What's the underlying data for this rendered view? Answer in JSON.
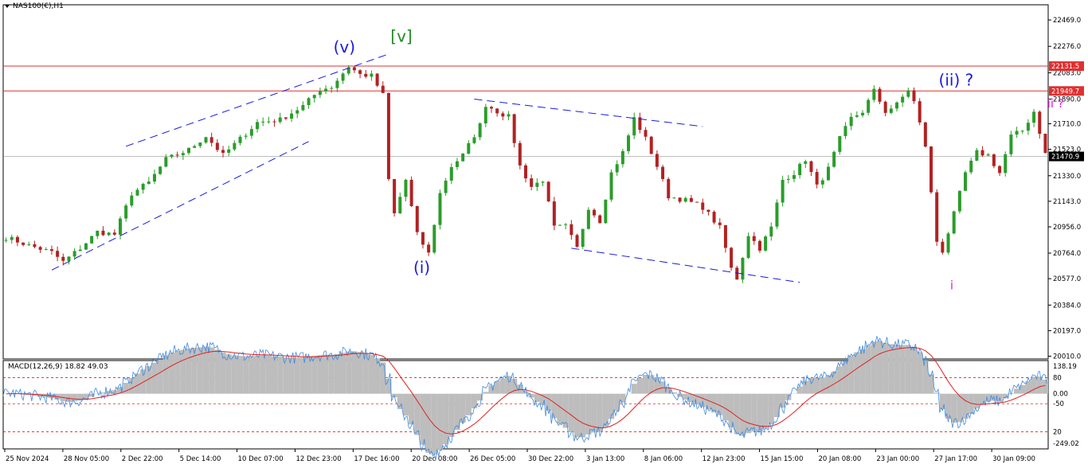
{
  "header": {
    "symbol_label": "NAS100(€),H1"
  },
  "macd": {
    "label": "MACD(12,26,9) 18.82 49.03"
  },
  "colors": {
    "bull": "#2a9d2a",
    "bear": "#b22222",
    "level_line": "#e03030",
    "channel": "#1a1adf",
    "wave_blue": "#1a1adf",
    "wave_green": "#228b22",
    "wave_magenta": "#e020e0",
    "macd_hist": "#bdbdbd",
    "macd_line": "#3d8ae0",
    "signal_line": "#e02020",
    "grid": "#dddddd"
  },
  "chart_data": [
    {
      "type": "candlestick",
      "title": "NAS100(€),H1",
      "price_axis": {
        "ticks": [
          "22469.0",
          "22276.0",
          "22083.0",
          "21890.0",
          "21710.0",
          "21523.0",
          "21330.0",
          "21143.0",
          "20956.0",
          "20764.0",
          "20577.0",
          "20384.0",
          "20197.0",
          "20010.0"
        ],
        "range": [
          19990,
          22580
        ]
      },
      "time_axis": {
        "ticks": [
          "25 Nov 2024",
          "28 Nov 05:00",
          "2 Dec 22:00",
          "5 Dec 14:00",
          "10 Dec 07:00",
          "12 Dec 23:00",
          "17 Dec 16:00",
          "20 Dec 08:00",
          "26 Dec 05:00",
          "30 Dec 22:00",
          "3 Jan 13:00",
          "8 Jan 06:00",
          "12 Jan 23:00",
          "15 Jan 15:00",
          "20 Jan 08:00",
          "23 Jan 00:00",
          "27 Jan 17:00",
          "30 Jan 09:00"
        ]
      },
      "price_path": [
        [
          0,
          20880
        ],
        [
          4,
          20820
        ],
        [
          8,
          20770
        ],
        [
          10,
          20700
        ],
        [
          13,
          20800
        ],
        [
          16,
          20920
        ],
        [
          19,
          20900
        ],
        [
          22,
          21200
        ],
        [
          25,
          21280
        ],
        [
          28,
          21450
        ],
        [
          32,
          21520
        ],
        [
          35,
          21620
        ],
        [
          38,
          21480
        ],
        [
          40,
          21560
        ],
        [
          44,
          21720
        ],
        [
          48,
          21740
        ],
        [
          52,
          21840
        ],
        [
          55,
          21960
        ],
        [
          57,
          21980
        ],
        [
          60,
          22130
        ],
        [
          62,
          22070
        ],
        [
          64,
          22060
        ],
        [
          66,
          21920
        ],
        [
          67,
          21300
        ],
        [
          68,
          21050
        ],
        [
          70,
          21300
        ],
        [
          72,
          20900
        ],
        [
          74,
          20760
        ],
        [
          76,
          21200
        ],
        [
          78,
          21400
        ],
        [
          80,
          21480
        ],
        [
          83,
          21700
        ],
        [
          84,
          21850
        ],
        [
          86,
          21800
        ],
        [
          88,
          21760
        ],
        [
          90,
          21400
        ],
        [
          92,
          21250
        ],
        [
          94,
          21300
        ],
        [
          96,
          20950
        ],
        [
          98,
          20960
        ],
        [
          100,
          20800
        ],
        [
          102,
          21100
        ],
        [
          104,
          21000
        ],
        [
          106,
          21350
        ],
        [
          108,
          21500
        ],
        [
          110,
          21750
        ],
        [
          112,
          21600
        ],
        [
          114,
          21400
        ],
        [
          116,
          21180
        ],
        [
          119,
          21150
        ],
        [
          122,
          21100
        ],
        [
          125,
          20950
        ],
        [
          127,
          20650
        ],
        [
          128,
          20580
        ],
        [
          130,
          20900
        ],
        [
          132,
          20800
        ],
        [
          134,
          20950
        ],
        [
          136,
          21300
        ],
        [
          138,
          21350
        ],
        [
          140,
          21450
        ],
        [
          142,
          21250
        ],
        [
          144,
          21380
        ],
        [
          146,
          21600
        ],
        [
          148,
          21750
        ],
        [
          150,
          21800
        ],
        [
          152,
          21950
        ],
        [
          154,
          21800
        ],
        [
          156,
          21850
        ],
        [
          158,
          21960
        ],
        [
          159,
          21870
        ],
        [
          161,
          21550
        ],
        [
          163,
          20850
        ],
        [
          164,
          20780
        ],
        [
          166,
          21050
        ],
        [
          168,
          21350
        ],
        [
          170,
          21500
        ],
        [
          172,
          21480
        ],
        [
          174,
          21350
        ],
        [
          176,
          21620
        ],
        [
          178,
          21660
        ],
        [
          180,
          21800
        ],
        [
          181,
          21650
        ],
        [
          182,
          21490
        ]
      ],
      "horizontal_levels": [
        {
          "price": 22131.5,
          "label": "22131.5"
        },
        {
          "price": 21949.7,
          "label": "21949.7"
        }
      ],
      "current_price": {
        "price": 21470.9,
        "label": "21470.9"
      },
      "channels": [
        {
          "upper": [
            [
              21,
              21545
            ],
            [
              67,
              22220
            ]
          ],
          "lower": [
            [
              8,
              20640
            ],
            [
              53,
              21580
            ]
          ]
        },
        {
          "upper": [
            [
              82,
              21890
            ],
            [
              122,
              21690
            ]
          ],
          "lower": [
            [
              99,
              20800
            ],
            [
              139,
              20550
            ]
          ]
        }
      ],
      "wave_labels": [
        {
          "text": "(v)",
          "price": 22230,
          "x": 59,
          "color": "wave_blue"
        },
        {
          "text": "[v]",
          "price": 22310,
          "x": 69,
          "color": "wave_green"
        },
        {
          "text": "(i)",
          "price": 20620,
          "x": 73,
          "color": "wave_blue"
        },
        {
          "text": "(ii) ?",
          "price": 21990,
          "x": 165,
          "color": "wave_blue"
        },
        {
          "text": "ii ?",
          "price": 21830,
          "x": 184,
          "color": "wave_magenta"
        },
        {
          "text": "i",
          "price": 20500,
          "x": 167,
          "color": "wave_magenta"
        }
      ]
    },
    {
      "type": "macd",
      "title": "MACD(12,26,9) 18.82 49.03",
      "params": [
        12,
        26,
        9
      ],
      "macd_value": 18.82,
      "signal_value": 49.03,
      "axis_ticks": [
        "138.19",
        "80",
        "0.00",
        "-50",
        "20",
        "-249.02"
      ],
      "levels": [
        80,
        -50,
        -190
      ]
    }
  ]
}
